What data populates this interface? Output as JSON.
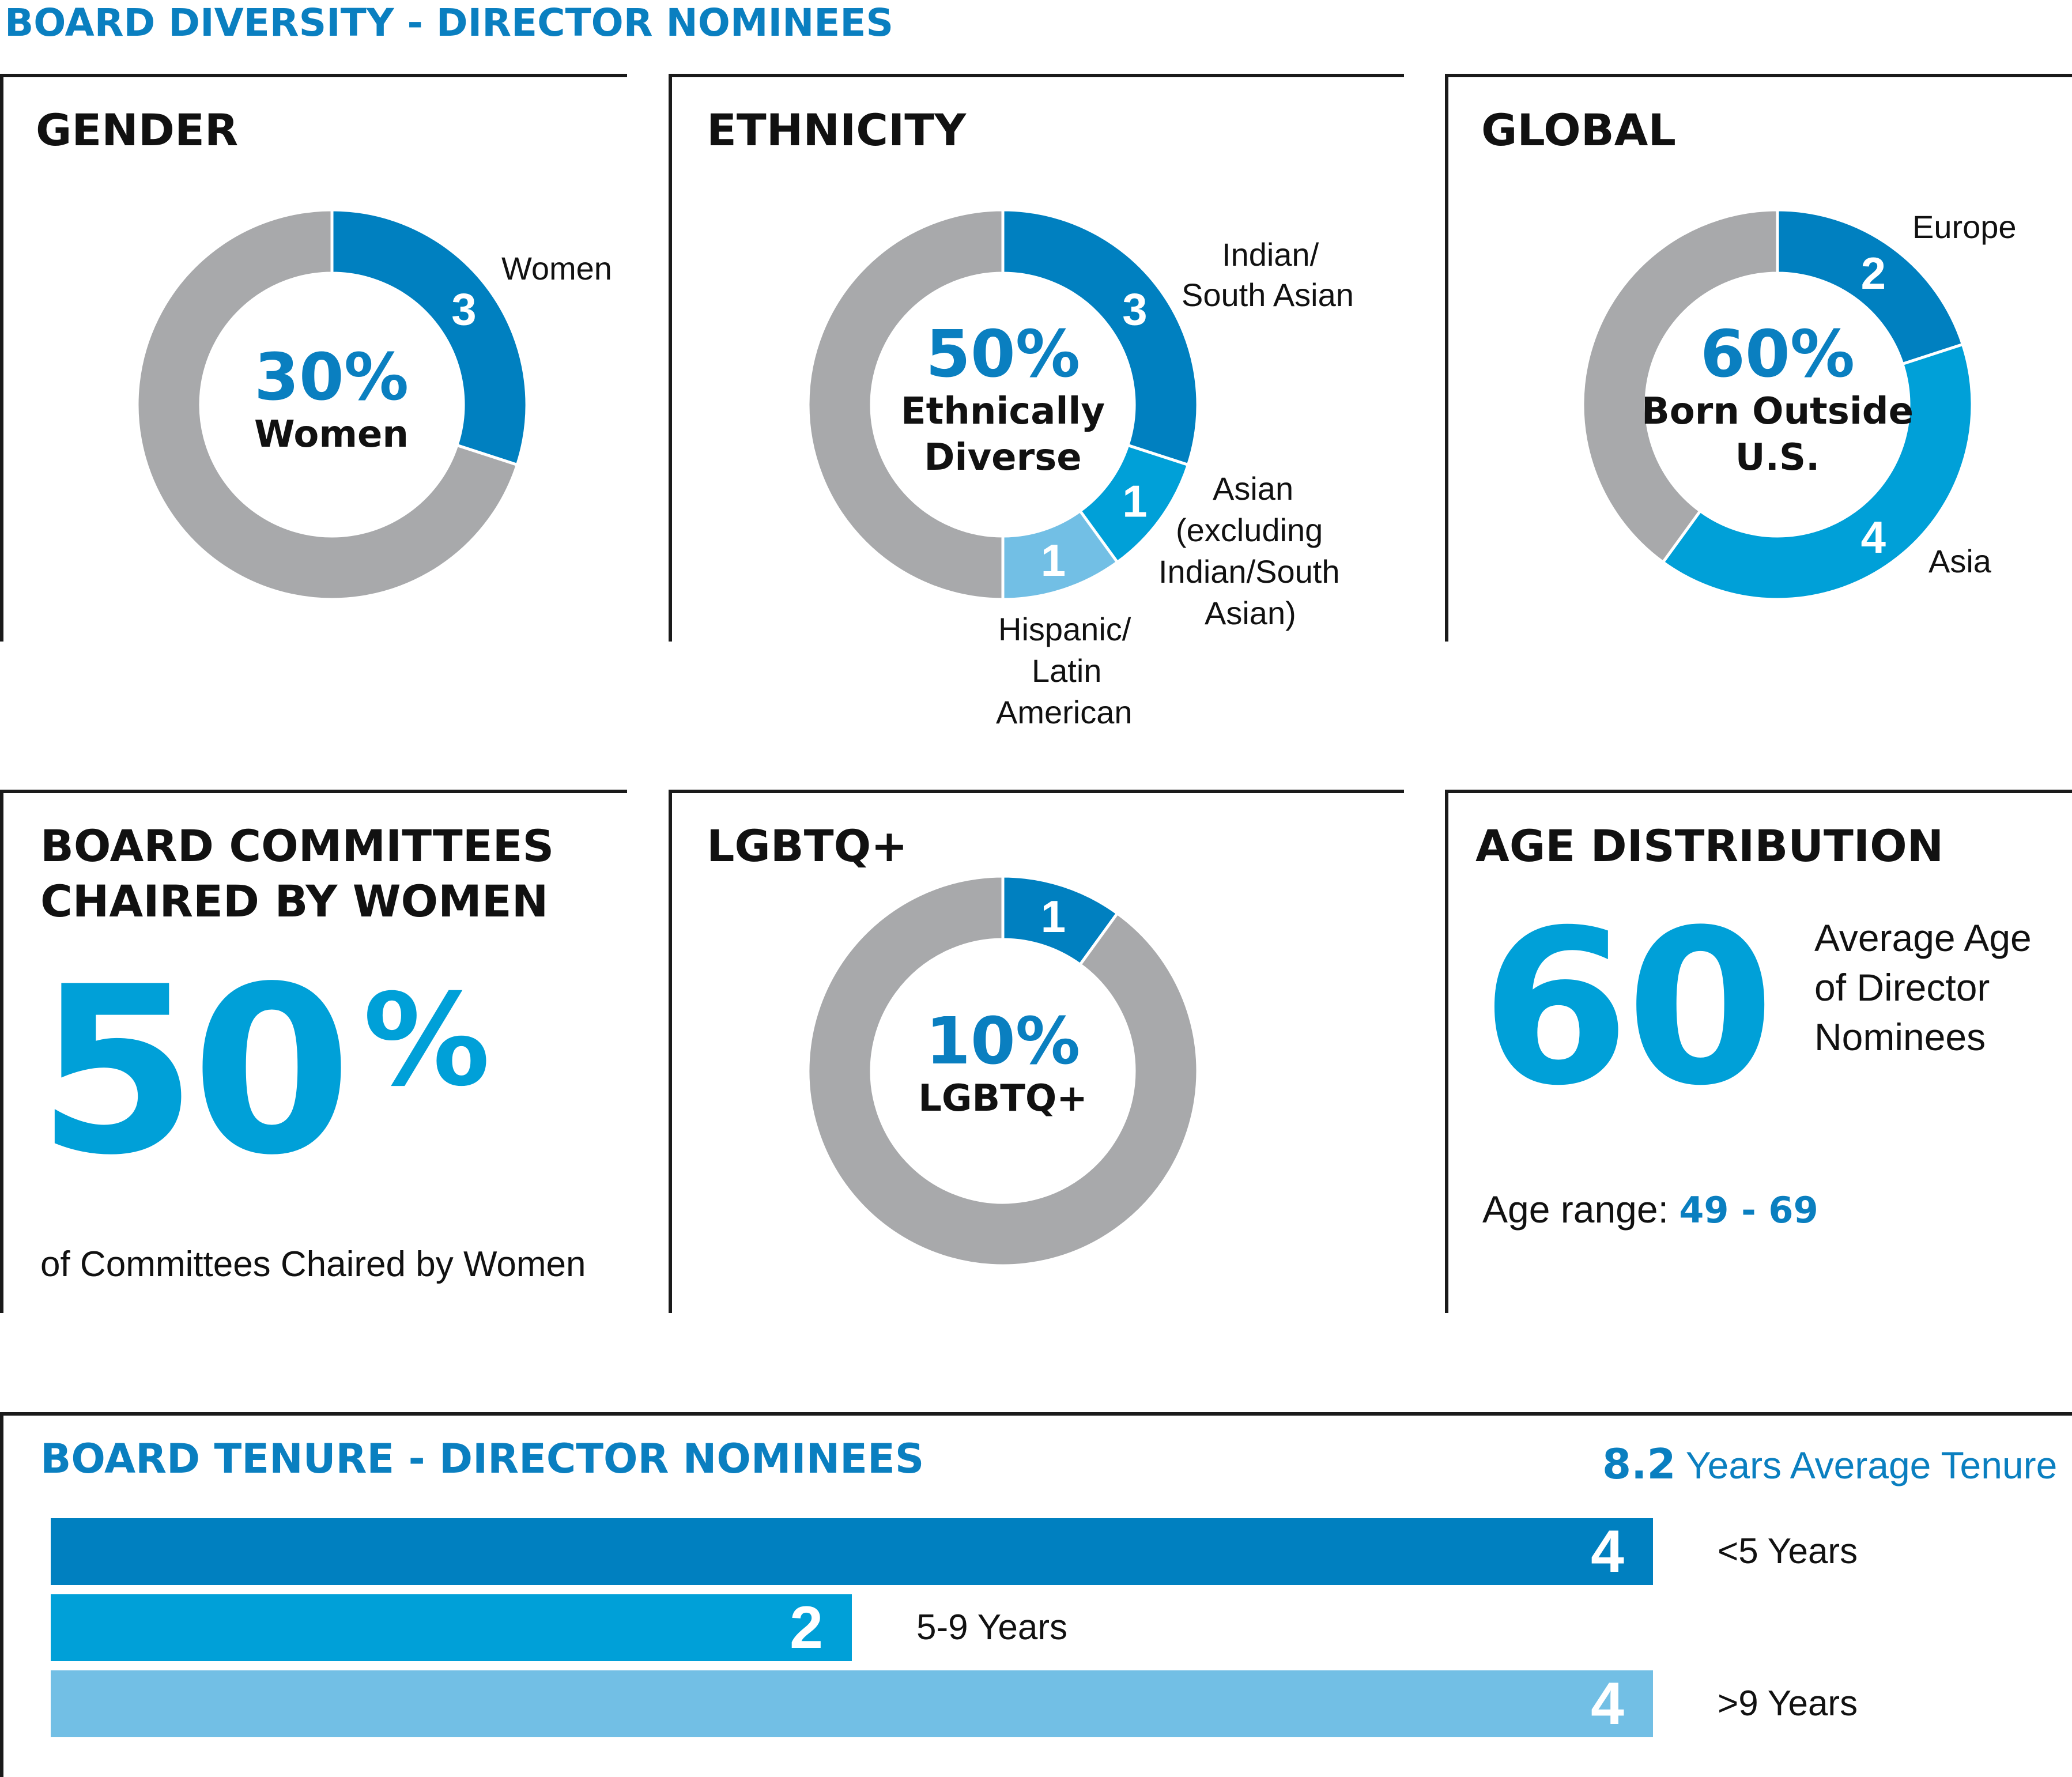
{
  "header": {
    "title": "BOARD DIVERSITY - DIRECTOR NOMINEES"
  },
  "colors": {
    "dark_blue": "#0080c0",
    "mid_blue": "#00a0d8",
    "light_blue": "#72bfe5",
    "gray": "#a8a9ab",
    "accent_text": "#0a7fc0"
  },
  "gender": {
    "title": "GENDER",
    "center_value": "30%",
    "center_label": "Women",
    "label_women": "Women"
  },
  "ethnicity": {
    "title": "ETHNICITY",
    "center_value": "50%",
    "center_label_1": "Ethnically",
    "center_label_2": "Diverse",
    "label_indian_1": "Indian/",
    "label_indian_2": "South Asian",
    "label_asian_1": "Asian",
    "label_asian_2": "(excluding",
    "label_asian_3": "Indian/South",
    "label_asian_4": "Asian)",
    "label_hisp_1": "Hispanic/",
    "label_hisp_2": "Latin",
    "label_hisp_3": "American"
  },
  "global": {
    "title": "GLOBAL",
    "center_value": "60%",
    "center_label_1": "Born Outside",
    "center_label_2": "U.S.",
    "label_europe": "Europe",
    "label_asia": "Asia"
  },
  "committees": {
    "title_1": "BOARD COMMITTEES",
    "title_2": "CHAIRED BY WOMEN",
    "big_value": "50",
    "big_unit": "%",
    "caption": "of Committees Chaired by Women"
  },
  "lgbtq": {
    "title": "LGBTQ+",
    "center_value": "10%",
    "center_label": "LGBTQ+"
  },
  "age": {
    "title": "AGE DISTRIBUTION",
    "big_value": "60",
    "desc_1": "Average Age",
    "desc_2": "of Director",
    "desc_3": "Nominees",
    "range_label": "Age range: ",
    "range_value": "49 - 69"
  },
  "tenure": {
    "title": "BOARD TENURE - DIRECTOR NOMINEES",
    "avg_value": "8.2",
    "avg_label": " Years Average Tenure"
  },
  "chart_data": [
    {
      "type": "pie",
      "title": "GENDER",
      "total": 10,
      "slices": [
        {
          "label": "Women",
          "value": 3,
          "color": "#0080c0"
        },
        {
          "label": "",
          "value": 7,
          "color": "#a8a9ab"
        }
      ]
    },
    {
      "type": "pie",
      "title": "ETHNICITY",
      "total": 10,
      "slices": [
        {
          "label": "Indian/ South Asian",
          "value": 3,
          "color": "#0080c0"
        },
        {
          "label": "Asian (excluding Indian/South Asian)",
          "value": 1,
          "color": "#00a0d8"
        },
        {
          "label": "Hispanic/ Latin American",
          "value": 1,
          "color": "#72bfe5"
        },
        {
          "label": "",
          "value": 5,
          "color": "#a8a9ab"
        }
      ]
    },
    {
      "type": "pie",
      "title": "GLOBAL",
      "total": 10,
      "slices": [
        {
          "label": "Europe",
          "value": 2,
          "color": "#0080c0"
        },
        {
          "label": "Asia",
          "value": 4,
          "color": "#00a0d8"
        },
        {
          "label": "",
          "value": 4,
          "color": "#a8a9ab"
        }
      ]
    },
    {
      "type": "pie",
      "title": "LGBTQ+",
      "total": 10,
      "slices": [
        {
          "label": "",
          "value": 1,
          "color": "#0080c0"
        },
        {
          "label": "",
          "value": 9,
          "color": "#a8a9ab"
        }
      ]
    },
    {
      "type": "bar",
      "title": "BOARD TENURE - DIRECTOR NOMINEES",
      "orientation": "horizontal",
      "categories": [
        "<5 Years",
        "5-9 Years",
        ">9 Years"
      ],
      "values": [
        4,
        2,
        4
      ],
      "colors": [
        "#0080c0",
        "#00a0d8",
        "#72bfe5"
      ],
      "xlim": [
        0,
        4
      ]
    }
  ]
}
